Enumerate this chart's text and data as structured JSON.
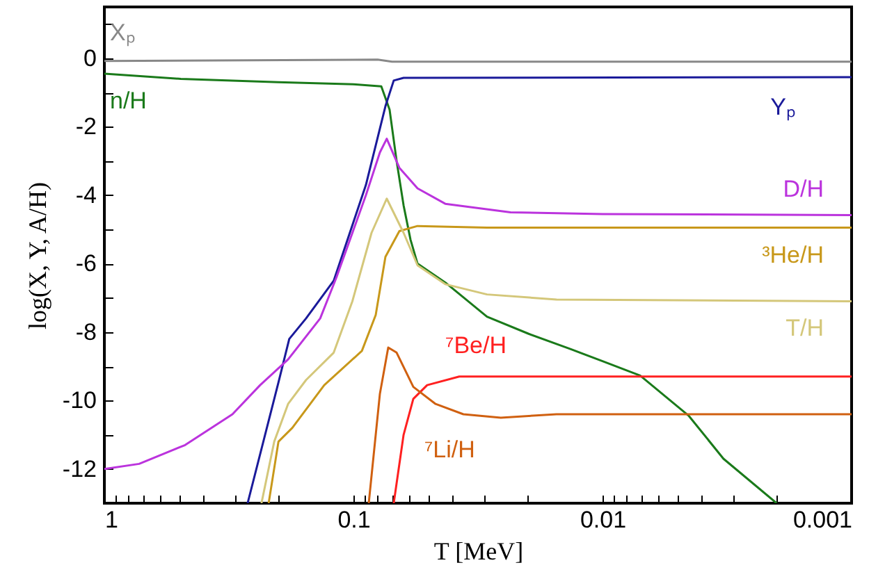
{
  "chart_data": {
    "type": "line",
    "xlabel": "T [MeV]",
    "ylabel": "log(X, Y, A/H)",
    "log": "x",
    "grid": false,
    "xlim": [
      1,
      0.001
    ],
    "ylim": [
      -13,
      1.5
    ],
    "xticks": [
      1,
      {
        "value": 0.9,
        "label": null
      },
      {
        "value": 0.8,
        "label": null
      },
      {
        "value": 0.7,
        "label": null
      },
      {
        "value": 0.6,
        "label": null
      },
      {
        "value": 0.5,
        "label": null
      },
      {
        "value": 0.4,
        "label": null
      },
      {
        "value": 0.3,
        "label": null
      },
      {
        "value": 0.2,
        "label": null
      },
      0.1,
      {
        "value": 0.09,
        "label": null
      },
      {
        "value": 0.08,
        "label": null
      },
      {
        "value": 0.07,
        "label": null
      },
      {
        "value": 0.06,
        "label": null
      },
      {
        "value": 0.05,
        "label": null
      },
      {
        "value": 0.04,
        "label": null
      },
      {
        "value": 0.03,
        "label": null
      },
      {
        "value": 0.02,
        "label": null
      },
      0.01,
      {
        "value": 0.009,
        "label": null
      },
      {
        "value": 0.008,
        "label": null
      },
      {
        "value": 0.007,
        "label": null
      },
      {
        "value": 0.006,
        "label": null
      },
      {
        "value": 0.005,
        "label": null
      },
      {
        "value": 0.004,
        "label": null
      },
      {
        "value": 0.003,
        "label": null
      },
      {
        "value": 0.002,
        "label": null
      },
      0.001
    ],
    "yticks": [
      {
        "value": 1,
        "label": null
      },
      0,
      {
        "value": -1,
        "label": null
      },
      -2,
      {
        "value": -3,
        "label": null
      },
      -4,
      {
        "value": -5,
        "label": null
      },
      -6,
      {
        "value": -7,
        "label": null
      },
      -8,
      {
        "value": -9,
        "label": null
      },
      -10,
      {
        "value": -11,
        "label": null
      },
      -12
    ],
    "series": [
      {
        "name": "Xₚ",
        "color": "#888888",
        "x": [
          1,
          0.08,
          0.07,
          0.001
        ],
        "values": [
          -0.08,
          -0.04,
          -0.1,
          -0.1
        ]
      },
      {
        "name": "n/H",
        "color": "#1a7a1a",
        "x": [
          1,
          0.493,
          0.2,
          0.1,
          0.0773,
          0.0716,
          0.0671,
          0.0629,
          0.059,
          0.0553,
          0.0428,
          0.0291,
          0.0198,
          0.0134,
          0.01,
          0.00706,
          0.0045,
          0.00327,
          0.002
        ],
        "values": [
          -0.45,
          -0.6,
          -0.7,
          -0.76,
          -0.82,
          -1.5,
          -3.0,
          -4.3,
          -5.3,
          -6.0,
          -6.55,
          -7.55,
          -8.05,
          -8.5,
          -8.85,
          -9.27,
          -10.45,
          -11.7,
          -13
        ]
      },
      {
        "name": "Yₚ",
        "color": "#1a1a9a",
        "x": [
          0.266,
          0.2,
          0.181,
          0.155,
          0.12,
          0.0891,
          0.0744,
          0.0689,
          0.0629,
          0.001
        ],
        "values": [
          -13,
          -9.47,
          -8.2,
          -7.6,
          -6.5,
          -3.7,
          -1.4,
          -0.65,
          -0.57,
          -0.55
        ]
      },
      {
        "name": "D/H",
        "color": "#bb33dd",
        "x": [
          1,
          0.725,
          0.474,
          0.306,
          0.237,
          0.183,
          0.136,
          0.117,
          0.0891,
          0.0783,
          0.0735,
          0.0654,
          0.0553,
          0.0428,
          0.0234,
          0.01,
          0.001
        ],
        "values": [
          -12,
          -11.85,
          -11.3,
          -10.4,
          -9.55,
          -8.8,
          -7.6,
          -6.4,
          -4.0,
          -2.75,
          -2.35,
          -3.2,
          -3.8,
          -4.25,
          -4.5,
          -4.55,
          -4.58
        ]
      },
      {
        "name": "³He/H",
        "color": "#c8981a",
        "x": [
          0.219,
          0.2,
          0.176,
          0.131,
          0.0925,
          0.0814,
          0.0744,
          0.0654,
          0.0553,
          0.0291,
          0.001
        ],
        "values": [
          -13,
          -11.2,
          -10.8,
          -9.55,
          -8.55,
          -7.5,
          -5.8,
          -5.05,
          -4.9,
          -4.95,
          -4.95
        ]
      },
      {
        "name": "T/H",
        "color": "#d4c77a",
        "x": [
          0.234,
          0.208,
          0.183,
          0.155,
          0.12,
          0.101,
          0.0846,
          0.0735,
          0.0629,
          0.0553,
          0.0428,
          0.0291,
          0.0153,
          0.001
        ],
        "values": [
          -13,
          -11.2,
          -10.1,
          -9.4,
          -8.6,
          -7.1,
          -5.1,
          -4.1,
          -5.1,
          -6.05,
          -6.6,
          -6.9,
          -7.05,
          -7.1
        ]
      },
      {
        "name": "⁷Be/H",
        "color": "#ff2020",
        "x": [
          0.0689,
          0.0629,
          0.0575,
          0.0506,
          0.0376,
          0.001
        ],
        "values": [
          -13,
          -11.0,
          -9.95,
          -9.55,
          -9.3,
          -9.3
        ]
      },
      {
        "name": "⁷Li/H",
        "color": "#d06010",
        "x": [
          0.0868,
          0.0783,
          0.0725,
          0.0671,
          0.0575,
          0.0468,
          0.0362,
          0.0256,
          0.0153,
          0.001
        ],
        "values": [
          -13,
          -9.8,
          -8.45,
          -8.6,
          -9.6,
          -10.1,
          -10.4,
          -10.5,
          -10.4,
          -10.4
        ]
      }
    ]
  }
}
